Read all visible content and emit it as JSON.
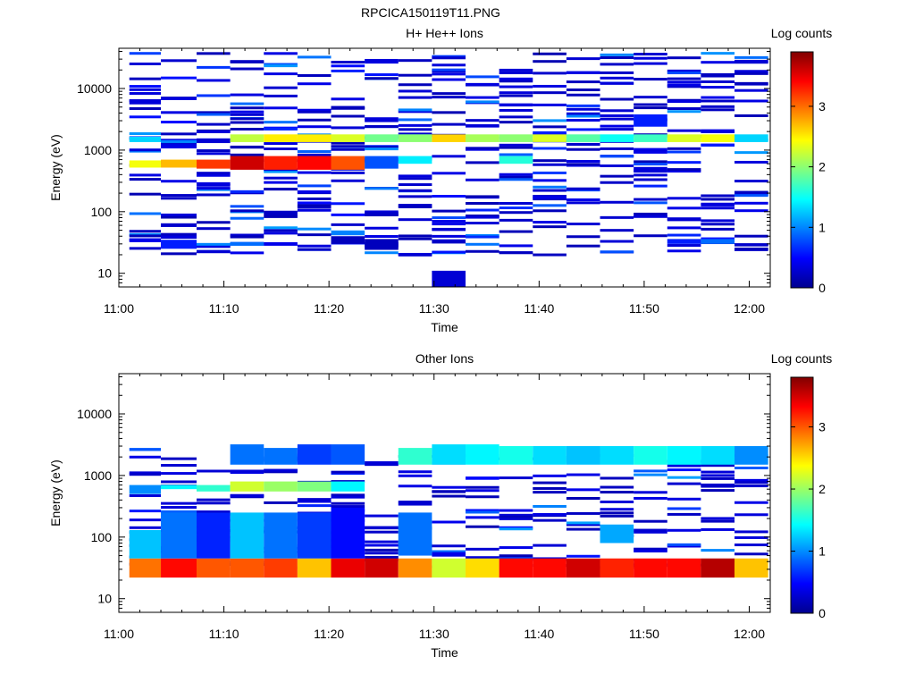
{
  "figure_title": "RPCICA150119T11.PNG",
  "chart_data": [
    {
      "type": "heatmap",
      "title": "H+ He++ Ions",
      "xlabel": "Time",
      "ylabel": "Energy (eV)",
      "colorbar_label": "Log counts",
      "x_ticks": [
        "11:00",
        "11:10",
        "11:20",
        "11:30",
        "11:40",
        "11:50",
        "12:00"
      ],
      "y_ticks": [
        "10",
        "100",
        "1000",
        "10000"
      ],
      "colorbar_ticks": [
        "0",
        "1",
        "2",
        "3"
      ],
      "y_scale": "log",
      "ylim": [
        6,
        45000
      ],
      "xlim_minutes": [
        0,
        62
      ],
      "clim": [
        0,
        3.9
      ],
      "colormap": "jet",
      "time_bins_minutes": [
        [
          1,
          4
        ],
        [
          4,
          7.4
        ],
        [
          7.4,
          10.6
        ],
        [
          10.6,
          13.8
        ],
        [
          13.8,
          17
        ],
        [
          17,
          20.2
        ],
        [
          20.2,
          23.4
        ],
        [
          23.4,
          26.6
        ],
        [
          26.6,
          29.8
        ],
        [
          29.8,
          33
        ],
        [
          33,
          36.2
        ],
        [
          36.2,
          39.4
        ],
        [
          39.4,
          42.6
        ],
        [
          42.6,
          45.8
        ],
        [
          45.8,
          49
        ],
        [
          49,
          52.2
        ],
        [
          52.2,
          55.4
        ],
        [
          55.4,
          58.6
        ],
        [
          58.6,
          61.8
        ]
      ],
      "cells": [
        {
          "t": 0,
          "e": [
            680,
            520
          ],
          "v": 2.4
        },
        {
          "t": 0,
          "e": [
            1650,
            1350
          ],
          "v": 1.3
        },
        {
          "t": 0,
          "e": [
            37,
            32
          ],
          "v": 0.4
        },
        {
          "t": 1,
          "e": [
            700,
            520
          ],
          "v": 2.7
        },
        {
          "t": 1,
          "e": [
            35,
            25
          ],
          "v": 0.6
        },
        {
          "t": 1,
          "e": [
            1450,
            1300
          ],
          "v": 1.0
        },
        {
          "t": 2,
          "e": [
            700,
            500
          ],
          "v": 3.2
        },
        {
          "t": 2,
          "e": [
            1550,
            1300
          ],
          "v": 0.3
        },
        {
          "t": 3,
          "e": [
            800,
            480
          ],
          "v": 3.6
        },
        {
          "t": 3,
          "e": [
            1800,
            1350
          ],
          "v": 2.2
        },
        {
          "t": 3,
          "e": [
            32,
            28
          ],
          "v": 0.9
        },
        {
          "t": 4,
          "e": [
            800,
            480
          ],
          "v": 3.3
        },
        {
          "t": 4,
          "e": [
            1800,
            1350
          ],
          "v": 2.5
        },
        {
          "t": 4,
          "e": [
            32,
            28
          ],
          "v": 0.4
        },
        {
          "t": 5,
          "e": [
            800,
            480
          ],
          "v": 3.4
        },
        {
          "t": 5,
          "e": [
            1800,
            1350
          ],
          "v": 2.5
        },
        {
          "t": 6,
          "e": [
            800,
            480
          ],
          "v": 3.1
        },
        {
          "t": 6,
          "e": [
            1800,
            1350
          ],
          "v": 2.3
        },
        {
          "t": 6,
          "e": [
            40,
            30
          ],
          "v": 0.2
        },
        {
          "t": 7,
          "e": [
            800,
            500
          ],
          "v": 0.8
        },
        {
          "t": 7,
          "e": [
            1800,
            1350
          ],
          "v": 1.9
        },
        {
          "t": 7,
          "e": [
            36,
            24
          ],
          "v": 0.2
        },
        {
          "t": 8,
          "e": [
            800,
            600
          ],
          "v": 1.4
        },
        {
          "t": 8,
          "e": [
            1800,
            1350
          ],
          "v": 2.0
        },
        {
          "t": 9,
          "e": [
            1800,
            1350
          ],
          "v": 2.6
        },
        {
          "t": 9,
          "e": [
            11,
            6
          ],
          "v": 0.3
        },
        {
          "t": 10,
          "e": [
            1800,
            1350
          ],
          "v": 2.1
        },
        {
          "t": 11,
          "e": [
            800,
            600
          ],
          "v": 1.6
        },
        {
          "t": 11,
          "e": [
            1800,
            1350
          ],
          "v": 2.0
        },
        {
          "t": 12,
          "e": [
            1800,
            1350
          ],
          "v": 2.3
        },
        {
          "t": 13,
          "e": [
            1800,
            1350
          ],
          "v": 1.8
        },
        {
          "t": 14,
          "e": [
            1800,
            1350
          ],
          "v": 1.5
        },
        {
          "t": 15,
          "e": [
            1800,
            1350
          ],
          "v": 1.7
        },
        {
          "t": 15,
          "e": [
            3800,
            2400
          ],
          "v": 0.6
        },
        {
          "t": 16,
          "e": [
            1800,
            1350
          ],
          "v": 2.3
        },
        {
          "t": 16,
          "e": [
            36,
            30
          ],
          "v": 0.6
        },
        {
          "t": 17,
          "e": [
            1800,
            1350
          ],
          "v": 2.4
        },
        {
          "t": 17,
          "e": [
            36,
            30
          ],
          "v": 0.9
        },
        {
          "t": 18,
          "e": [
            1800,
            1350
          ],
          "v": 1.3
        }
      ]
    },
    {
      "type": "heatmap",
      "title": "Other Ions",
      "xlabel": "Time",
      "ylabel": "Energy (eV)",
      "colorbar_label": "Log counts",
      "x_ticks": [
        "11:00",
        "11:10",
        "11:20",
        "11:30",
        "11:40",
        "11:50",
        "12:00"
      ],
      "y_ticks": [
        "10",
        "100",
        "1000",
        "10000"
      ],
      "colorbar_ticks": [
        "0",
        "1",
        "2",
        "3"
      ],
      "y_scale": "log",
      "ylim": [
        6,
        45000
      ],
      "xlim_minutes": [
        0,
        62
      ],
      "clim": [
        0,
        3.8
      ],
      "colormap": "jet",
      "time_bins_minutes": [
        [
          1,
          4
        ],
        [
          4,
          7.4
        ],
        [
          7.4,
          10.6
        ],
        [
          10.6,
          13.8
        ],
        [
          13.8,
          17
        ],
        [
          17,
          20.2
        ],
        [
          20.2,
          23.4
        ],
        [
          23.4,
          26.6
        ],
        [
          26.6,
          29.8
        ],
        [
          29.8,
          33
        ],
        [
          33,
          36.2
        ],
        [
          36.2,
          39.4
        ],
        [
          39.4,
          42.6
        ],
        [
          42.6,
          45.8
        ],
        [
          45.8,
          49
        ],
        [
          49,
          52.2
        ],
        [
          52.2,
          55.4
        ],
        [
          55.4,
          58.6
        ],
        [
          58.6,
          61.8
        ]
      ],
      "cells": [
        {
          "t": 0,
          "e": [
            45,
            22
          ],
          "v": 2.9
        },
        {
          "t": 0,
          "e": [
            130,
            45
          ],
          "v": 1.2
        },
        {
          "t": 0,
          "e": [
            700,
            500
          ],
          "v": 1.0
        },
        {
          "t": 0,
          "e": [
            2800,
            2500
          ],
          "v": 0.8
        },
        {
          "t": 1,
          "e": [
            45,
            22
          ],
          "v": 3.3
        },
        {
          "t": 1,
          "e": [
            250,
            45
          ],
          "v": 0.9
        },
        {
          "t": 1,
          "e": [
            700,
            600
          ],
          "v": 1.4
        },
        {
          "t": 2,
          "e": [
            45,
            22
          ],
          "v": 3.0
        },
        {
          "t": 2,
          "e": [
            250,
            45
          ],
          "v": 0.6
        },
        {
          "t": 2,
          "e": [
            700,
            550
          ],
          "v": 1.6
        },
        {
          "t": 3,
          "e": [
            45,
            22
          ],
          "v": 3.0
        },
        {
          "t": 3,
          "e": [
            250,
            45
          ],
          "v": 1.2
        },
        {
          "t": 3,
          "e": [
            800,
            550
          ],
          "v": 2.2
        },
        {
          "t": 3,
          "e": [
            3200,
            1500
          ],
          "v": 0.9
        },
        {
          "t": 4,
          "e": [
            45,
            22
          ],
          "v": 3.1
        },
        {
          "t": 4,
          "e": [
            250,
            45
          ],
          "v": 0.9
        },
        {
          "t": 4,
          "e": [
            800,
            550
          ],
          "v": 2.0
        },
        {
          "t": 4,
          "e": [
            2800,
            1500
          ],
          "v": 0.9
        },
        {
          "t": 5,
          "e": [
            45,
            22
          ],
          "v": 2.6
        },
        {
          "t": 5,
          "e": [
            250,
            45
          ],
          "v": 0.7
        },
        {
          "t": 5,
          "e": [
            800,
            550
          ],
          "v": 1.9
        },
        {
          "t": 5,
          "e": [
            3200,
            1500
          ],
          "v": 0.7
        },
        {
          "t": 6,
          "e": [
            45,
            22
          ],
          "v": 3.4
        },
        {
          "t": 6,
          "e": [
            300,
            45
          ],
          "v": 0.5
        },
        {
          "t": 6,
          "e": [
            800,
            550
          ],
          "v": 1.4
        },
        {
          "t": 6,
          "e": [
            3200,
            1500
          ],
          "v": 0.8
        },
        {
          "t": 7,
          "e": [
            45,
            22
          ],
          "v": 3.5
        },
        {
          "t": 7,
          "e": [
            1700,
            1500
          ],
          "v": 0.3
        },
        {
          "t": 8,
          "e": [
            45,
            22
          ],
          "v": 2.8
        },
        {
          "t": 8,
          "e": [
            250,
            50
          ],
          "v": 0.9
        },
        {
          "t": 8,
          "e": [
            2800,
            1500
          ],
          "v": 1.6
        },
        {
          "t": 9,
          "e": [
            45,
            22
          ],
          "v": 2.2
        },
        {
          "t": 9,
          "e": [
            3200,
            1500
          ],
          "v": 1.3
        },
        {
          "t": 10,
          "e": [
            45,
            22
          ],
          "v": 2.5
        },
        {
          "t": 10,
          "e": [
            3200,
            1500
          ],
          "v": 1.4
        },
        {
          "t": 11,
          "e": [
            45,
            22
          ],
          "v": 3.3
        },
        {
          "t": 11,
          "e": [
            3000,
            1500
          ],
          "v": 1.5
        },
        {
          "t": 12,
          "e": [
            45,
            22
          ],
          "v": 3.3
        },
        {
          "t": 12,
          "e": [
            3000,
            1500
          ],
          "v": 1.3
        },
        {
          "t": 13,
          "e": [
            45,
            22
          ],
          "v": 3.5
        },
        {
          "t": 13,
          "e": [
            3000,
            1500
          ],
          "v": 1.2
        },
        {
          "t": 14,
          "e": [
            45,
            22
          ],
          "v": 3.2
        },
        {
          "t": 14,
          "e": [
            160,
            80
          ],
          "v": 1.1
        },
        {
          "t": 14,
          "e": [
            3000,
            1500
          ],
          "v": 1.3
        },
        {
          "t": 15,
          "e": [
            45,
            22
          ],
          "v": 3.3
        },
        {
          "t": 15,
          "e": [
            3000,
            1500
          ],
          "v": 1.5
        },
        {
          "t": 16,
          "e": [
            45,
            22
          ],
          "v": 3.3
        },
        {
          "t": 16,
          "e": [
            3000,
            1500
          ],
          "v": 1.4
        },
        {
          "t": 17,
          "e": [
            45,
            22
          ],
          "v": 3.6
        },
        {
          "t": 17,
          "e": [
            3000,
            1500
          ],
          "v": 1.3
        },
        {
          "t": 18,
          "e": [
            45,
            22
          ],
          "v": 2.6
        },
        {
          "t": 18,
          "e": [
            3000,
            1500
          ],
          "v": 1.0
        }
      ]
    }
  ]
}
